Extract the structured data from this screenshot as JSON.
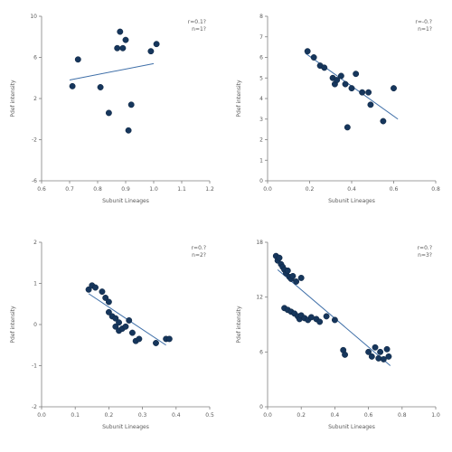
{
  "chart_data": [
    {
      "type": "scatter",
      "xlabel": "Subunit Lineages",
      "ylabel": "Pdef intensity",
      "stats": [
        "r=0.1?",
        "n=1?"
      ],
      "xlim": [
        0.6,
        1.2
      ],
      "ylim": [
        -6,
        10
      ],
      "x_ticks": [
        "0.6",
        "0.7",
        "0.8",
        "0.9",
        "1.0",
        "1.1",
        "1.2"
      ],
      "y_ticks": [
        "10",
        "6",
        "2",
        "-2",
        "-6"
      ],
      "points": [
        {
          "x": 0.71,
          "y": 3.2
        },
        {
          "x": 0.73,
          "y": 5.8
        },
        {
          "x": 0.81,
          "y": 3.1
        },
        {
          "x": 0.84,
          "y": 0.6
        },
        {
          "x": 0.87,
          "y": 6.9
        },
        {
          "x": 0.88,
          "y": 8.5
        },
        {
          "x": 0.89,
          "y": 6.9
        },
        {
          "x": 0.9,
          "y": 7.7
        },
        {
          "x": 0.91,
          "y": -1.1
        },
        {
          "x": 0.92,
          "y": 1.4
        },
        {
          "x": 0.99,
          "y": 6.6
        },
        {
          "x": 1.01,
          "y": 7.3
        }
      ],
      "trend": {
        "x": [
          0.7,
          1.0
        ],
        "y": [
          3.8,
          5.4
        ]
      }
    },
    {
      "type": "scatter",
      "xlabel": "Subunit Lineages",
      "ylabel": "Pdef intensity",
      "stats": [
        "r=-0.?",
        "n=1?"
      ],
      "xlim": [
        0,
        0.8
      ],
      "ylim": [
        0,
        8
      ],
      "x_ticks": [
        "0.0",
        "0.2",
        "0.4",
        "0.6",
        "0.8"
      ],
      "y_ticks": [
        "8",
        "7",
        "6",
        "5",
        "4",
        "3",
        "2",
        "1",
        "0"
      ],
      "points": [
        {
          "x": 0.19,
          "y": 6.3
        },
        {
          "x": 0.22,
          "y": 6.0
        },
        {
          "x": 0.25,
          "y": 5.6
        },
        {
          "x": 0.27,
          "y": 5.5
        },
        {
          "x": 0.31,
          "y": 5.0
        },
        {
          "x": 0.32,
          "y": 4.7
        },
        {
          "x": 0.33,
          "y": 4.9
        },
        {
          "x": 0.35,
          "y": 5.1
        },
        {
          "x": 0.37,
          "y": 4.7
        },
        {
          "x": 0.38,
          "y": 2.6
        },
        {
          "x": 0.4,
          "y": 4.5
        },
        {
          "x": 0.42,
          "y": 5.2
        },
        {
          "x": 0.45,
          "y": 4.3
        },
        {
          "x": 0.48,
          "y": 4.3
        },
        {
          "x": 0.49,
          "y": 3.7
        },
        {
          "x": 0.55,
          "y": 2.9
        },
        {
          "x": 0.6,
          "y": 4.5
        }
      ],
      "trend": {
        "x": [
          0.18,
          0.62
        ],
        "y": [
          6.2,
          3.0
        ]
      }
    },
    {
      "type": "scatter",
      "xlabel": "Subunit Lineages",
      "ylabel": "Pdef intensity",
      "stats": [
        "r=0.?",
        "n=2?"
      ],
      "xlim": [
        0,
        0.5
      ],
      "ylim": [
        -2,
        2
      ],
      "x_ticks": [
        "0.0",
        "0.1",
        "0.2",
        "0.3",
        "0.4",
        "0.5"
      ],
      "y_ticks": [
        "2",
        "1",
        "0",
        "-1",
        "-2"
      ],
      "points": [
        {
          "x": 0.14,
          "y": 0.85
        },
        {
          "x": 0.15,
          "y": 0.95
        },
        {
          "x": 0.16,
          "y": 0.9
        },
        {
          "x": 0.18,
          "y": 0.8
        },
        {
          "x": 0.19,
          "y": 0.65
        },
        {
          "x": 0.2,
          "y": 0.55
        },
        {
          "x": 0.2,
          "y": 0.3
        },
        {
          "x": 0.21,
          "y": 0.2
        },
        {
          "x": 0.22,
          "y": 0.15
        },
        {
          "x": 0.22,
          "y": -0.05
        },
        {
          "x": 0.23,
          "y": 0.05
        },
        {
          "x": 0.23,
          "y": -0.15
        },
        {
          "x": 0.24,
          "y": -0.1
        },
        {
          "x": 0.25,
          "y": -0.05
        },
        {
          "x": 0.26,
          "y": 0.1
        },
        {
          "x": 0.27,
          "y": -0.2
        },
        {
          "x": 0.28,
          "y": -0.4
        },
        {
          "x": 0.29,
          "y": -0.35
        },
        {
          "x": 0.34,
          "y": -0.45
        },
        {
          "x": 0.37,
          "y": -0.35
        },
        {
          "x": 0.38,
          "y": -0.35
        }
      ],
      "trend": {
        "x": [
          0.14,
          0.37
        ],
        "y": [
          0.75,
          -0.5
        ]
      }
    },
    {
      "type": "scatter",
      "xlabel": "Subunit Lineages",
      "ylabel": "Pdef intensity",
      "stats": [
        "r=0.?",
        "n=3?"
      ],
      "xlim": [
        0,
        1
      ],
      "ylim": [
        0,
        18
      ],
      "x_ticks": [
        "0.0",
        "0.2",
        "0.4",
        "0.6",
        "0.8",
        "1.0"
      ],
      "y_ticks": [
        "18",
        "12",
        "6",
        "0"
      ],
      "points": [
        {
          "x": 0.05,
          "y": 16.5
        },
        {
          "x": 0.06,
          "y": 16.0
        },
        {
          "x": 0.07,
          "y": 16.3
        },
        {
          "x": 0.08,
          "y": 15.6
        },
        {
          "x": 0.09,
          "y": 15.3
        },
        {
          "x": 0.1,
          "y": 15.0
        },
        {
          "x": 0.11,
          "y": 14.6
        },
        {
          "x": 0.12,
          "y": 14.9
        },
        {
          "x": 0.13,
          "y": 14.2
        },
        {
          "x": 0.14,
          "y": 14.0
        },
        {
          "x": 0.15,
          "y": 14.3
        },
        {
          "x": 0.17,
          "y": 13.7
        },
        {
          "x": 0.2,
          "y": 14.1
        },
        {
          "x": 0.1,
          "y": 10.8
        },
        {
          "x": 0.12,
          "y": 10.6
        },
        {
          "x": 0.14,
          "y": 10.4
        },
        {
          "x": 0.16,
          "y": 10.2
        },
        {
          "x": 0.18,
          "y": 9.9
        },
        {
          "x": 0.19,
          "y": 9.6
        },
        {
          "x": 0.2,
          "y": 10.0
        },
        {
          "x": 0.22,
          "y": 9.7
        },
        {
          "x": 0.24,
          "y": 9.5
        },
        {
          "x": 0.26,
          "y": 9.8
        },
        {
          "x": 0.29,
          "y": 9.6
        },
        {
          "x": 0.31,
          "y": 9.3
        },
        {
          "x": 0.35,
          "y": 9.9
        },
        {
          "x": 0.4,
          "y": 9.5
        },
        {
          "x": 0.45,
          "y": 6.2
        },
        {
          "x": 0.46,
          "y": 5.7
        },
        {
          "x": 0.6,
          "y": 6.0
        },
        {
          "x": 0.62,
          "y": 5.5
        },
        {
          "x": 0.64,
          "y": 6.5
        },
        {
          "x": 0.66,
          "y": 5.3
        },
        {
          "x": 0.67,
          "y": 6.0
        },
        {
          "x": 0.69,
          "y": 5.2
        },
        {
          "x": 0.71,
          "y": 6.3
        },
        {
          "x": 0.72,
          "y": 5.5
        }
      ],
      "trend": {
        "x": [
          0.06,
          0.73
        ],
        "y": [
          15.0,
          4.5
        ]
      }
    }
  ]
}
